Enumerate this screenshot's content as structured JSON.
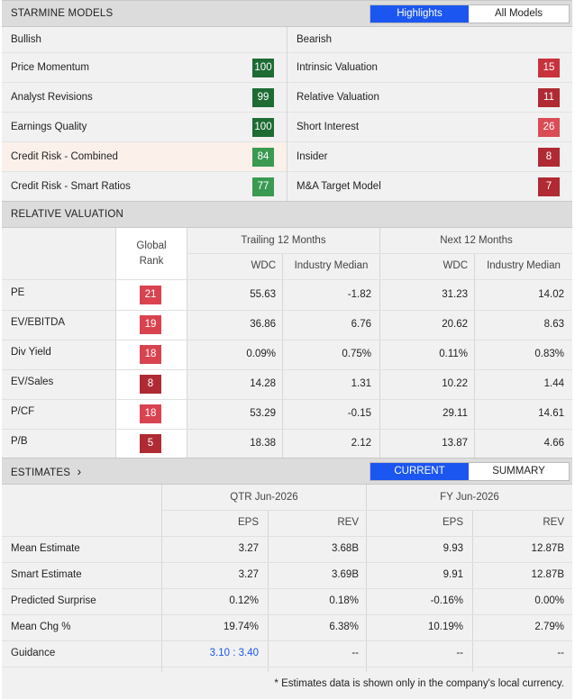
{
  "starmine": {
    "title": "STARMINE MODELS",
    "tabs": [
      {
        "label": "Highlights",
        "active": true
      },
      {
        "label": "All Models",
        "active": false
      }
    ],
    "bullish_label": "Bullish",
    "bearish_label": "Bearish",
    "bullish": [
      {
        "label": "Price Momentum",
        "score": "100",
        "color": "#1e6b34"
      },
      {
        "label": "Analyst Revisions",
        "score": "99",
        "color": "#1e6b34"
      },
      {
        "label": "Earnings Quality",
        "score": "100",
        "color": "#1e6b34"
      },
      {
        "label": "Credit Risk - Combined",
        "score": "84",
        "color": "#3a9a52"
      },
      {
        "label": "Credit Risk - Smart Ratios",
        "score": "77",
        "color": "#3a9a52"
      }
    ],
    "bearish": [
      {
        "label": "Intrinsic Valuation",
        "score": "15",
        "color": "#c8323c"
      },
      {
        "label": "Relative Valuation",
        "score": "11",
        "color": "#b02a33"
      },
      {
        "label": "Short Interest",
        "score": "26",
        "color": "#db4b55"
      },
      {
        "label": "Insider",
        "score": "8",
        "color": "#b02a33"
      },
      {
        "label": "M&A Target Model",
        "score": "7",
        "color": "#b02a33"
      }
    ]
  },
  "relative_valuation": {
    "title": "RELATIVE VALUATION",
    "global_rank_label": "Global\nRank",
    "global_rank_line1": "Global",
    "global_rank_line2": "Rank",
    "trailing_label": "Trailing 12 Months",
    "next_label": "Next 12 Months",
    "col_wdc": "WDC",
    "col_industry": "Industry Median",
    "rows": [
      {
        "metric": "PE",
        "rank": "21",
        "rank_color": "#d94350",
        "t_wdc": "55.63",
        "t_ind": "-1.82",
        "n_wdc": "31.23",
        "n_ind": "14.02"
      },
      {
        "metric": "EV/EBITDA",
        "rank": "19",
        "rank_color": "#d94350",
        "t_wdc": "36.86",
        "t_ind": "6.76",
        "n_wdc": "20.62",
        "n_ind": "8.63"
      },
      {
        "metric": "Div Yield",
        "rank": "18",
        "rank_color": "#d94350",
        "t_wdc": "0.09%",
        "t_ind": "0.75%",
        "n_wdc": "0.11%",
        "n_ind": "0.83%"
      },
      {
        "metric": "EV/Sales",
        "rank": "8",
        "rank_color": "#b02a33",
        "t_wdc": "14.28",
        "t_ind": "1.31",
        "n_wdc": "10.22",
        "n_ind": "1.44"
      },
      {
        "metric": "P/CF",
        "rank": "18",
        "rank_color": "#d94350",
        "t_wdc": "53.29",
        "t_ind": "-0.15",
        "n_wdc": "29.11",
        "n_ind": "14.61"
      },
      {
        "metric": "P/B",
        "rank": "5",
        "rank_color": "#b02a33",
        "t_wdc": "18.38",
        "t_ind": "2.12",
        "n_wdc": "13.87",
        "n_ind": "4.66"
      }
    ]
  },
  "estimates": {
    "title": "ESTIMATES",
    "chevron": "›",
    "tabs": [
      {
        "label": "CURRENT",
        "active": true
      },
      {
        "label": "SUMMARY",
        "active": false
      }
    ],
    "qtr_label": "QTR Jun-2026",
    "fy_label": "FY Jun-2026",
    "col_eps": "EPS",
    "col_rev": "REV",
    "rows": [
      {
        "label": "Mean Estimate",
        "q_eps": "3.27",
        "q_rev": "3.68B",
        "f_eps": "9.93",
        "f_rev": "12.87B"
      },
      {
        "label": "Smart Estimate",
        "q_eps": "3.27",
        "q_rev": "3.69B",
        "f_eps": "9.91",
        "f_rev": "12.87B"
      },
      {
        "label": "Predicted Surprise",
        "q_eps": "0.12%",
        "q_rev": "0.18%",
        "f_eps": "-0.16%",
        "f_rev": "0.00%"
      },
      {
        "label": "Mean Chg %",
        "q_eps": "19.74%",
        "q_rev": "6.38%",
        "f_eps": "10.19%",
        "f_rev": "2.79%"
      },
      {
        "label": "Guidance",
        "q_eps": "3.10 : 3.40",
        "q_rev": "--",
        "f_eps": "--",
        "f_rev": "--"
      }
    ],
    "guidance_link_color": "#1b56f0",
    "footnote": "* Estimates data is shown only in the company's local currency."
  }
}
